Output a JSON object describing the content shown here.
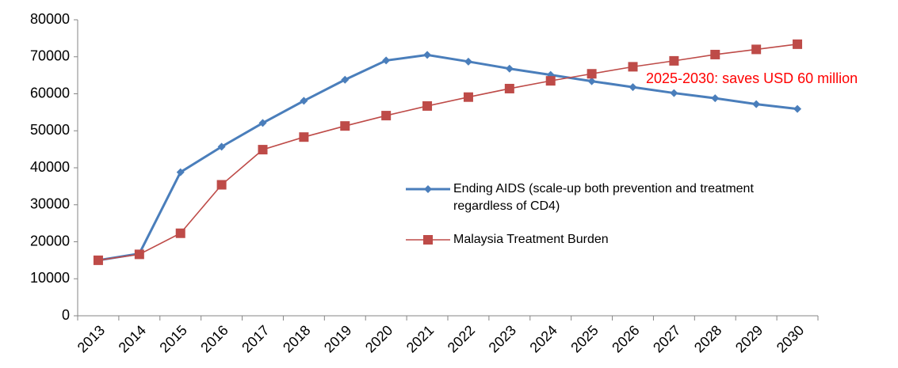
{
  "chart_data": {
    "type": "line",
    "categories": [
      "2013",
      "2014",
      "2015",
      "2016",
      "2017",
      "2018",
      "2019",
      "2020",
      "2021",
      "2022",
      "2023",
      "2024",
      "2025",
      "2026",
      "2027",
      "2028",
      "2029",
      "2030"
    ],
    "series": [
      {
        "name": "Ending AIDS (scale-up both prevention and treatment regardless of CD4)",
        "color": "#4a7ebb",
        "marker": "diamond",
        "values": [
          15000,
          16800,
          38800,
          45700,
          52100,
          58100,
          63800,
          69000,
          70500,
          68700,
          66800,
          65100,
          63400,
          61800,
          60200,
          58800,
          57200,
          55900
        ]
      },
      {
        "name": "Malaysia Treatment Burden",
        "color": "#be4b48",
        "marker": "square",
        "values": [
          15000,
          16600,
          22300,
          35400,
          44900,
          48300,
          51300,
          54100,
          56700,
          59100,
          61400,
          63500,
          65400,
          67300,
          68900,
          70600,
          72000,
          73400
        ]
      }
    ],
    "annotation": {
      "text": "2025-2030: saves USD 60 million",
      "color": "#ff0000"
    },
    "ylim": [
      0,
      80000
    ],
    "yticks": [
      0,
      10000,
      20000,
      30000,
      40000,
      50000,
      60000,
      70000,
      80000
    ]
  }
}
